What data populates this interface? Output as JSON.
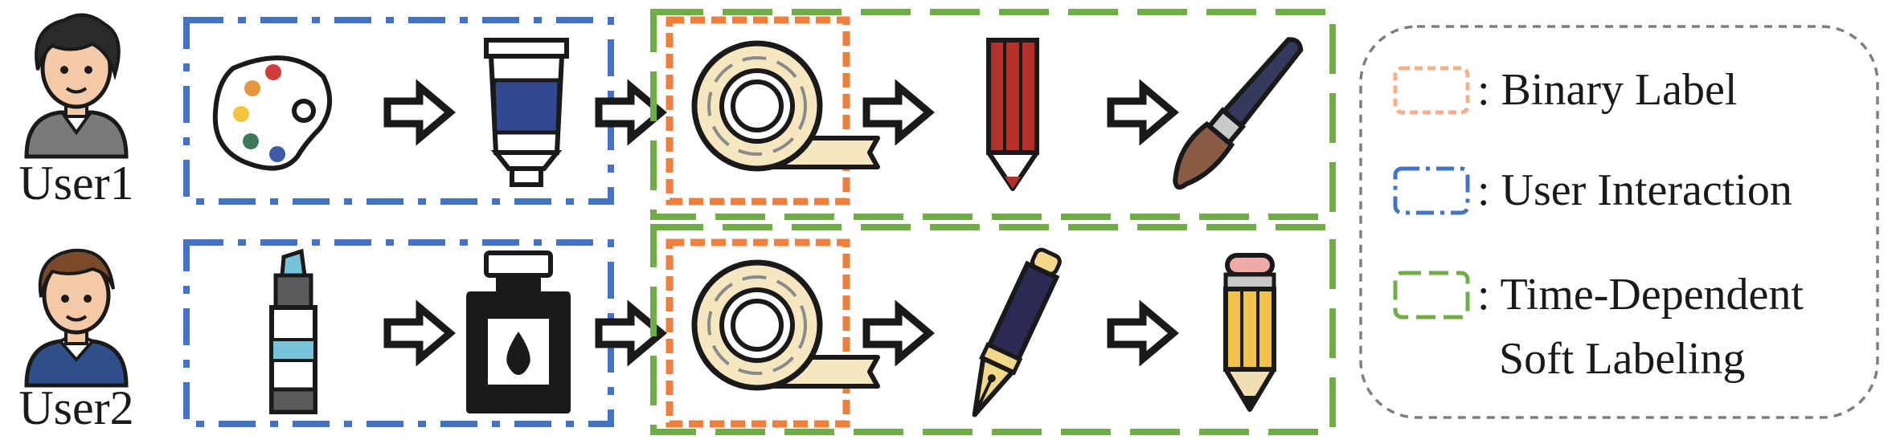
{
  "users": [
    {
      "label": "User1"
    },
    {
      "label": "User2"
    }
  ],
  "sequences": {
    "user1": [
      "palette-icon",
      "paint-tube-icon",
      "tape-roll-icon",
      "red-pencil-icon",
      "paint-brush-icon"
    ],
    "user2": [
      "highlighter-icon",
      "ink-bottle-icon",
      "tape-roll-icon",
      "fountain-pen-icon",
      "yellow-pencil-icon"
    ]
  },
  "legend": {
    "binary_label": ": Binary Label",
    "user_interaction": ": User Interaction",
    "time_dependent_line1": ": Time-Dependent",
    "time_dependent_line2": "Soft Labeling"
  },
  "colors": {
    "binary_label": "#f07f3c",
    "user_interaction": "#4472c4",
    "time_dependent": "#70ad47",
    "legend_frame": "#7f7f7f"
  }
}
